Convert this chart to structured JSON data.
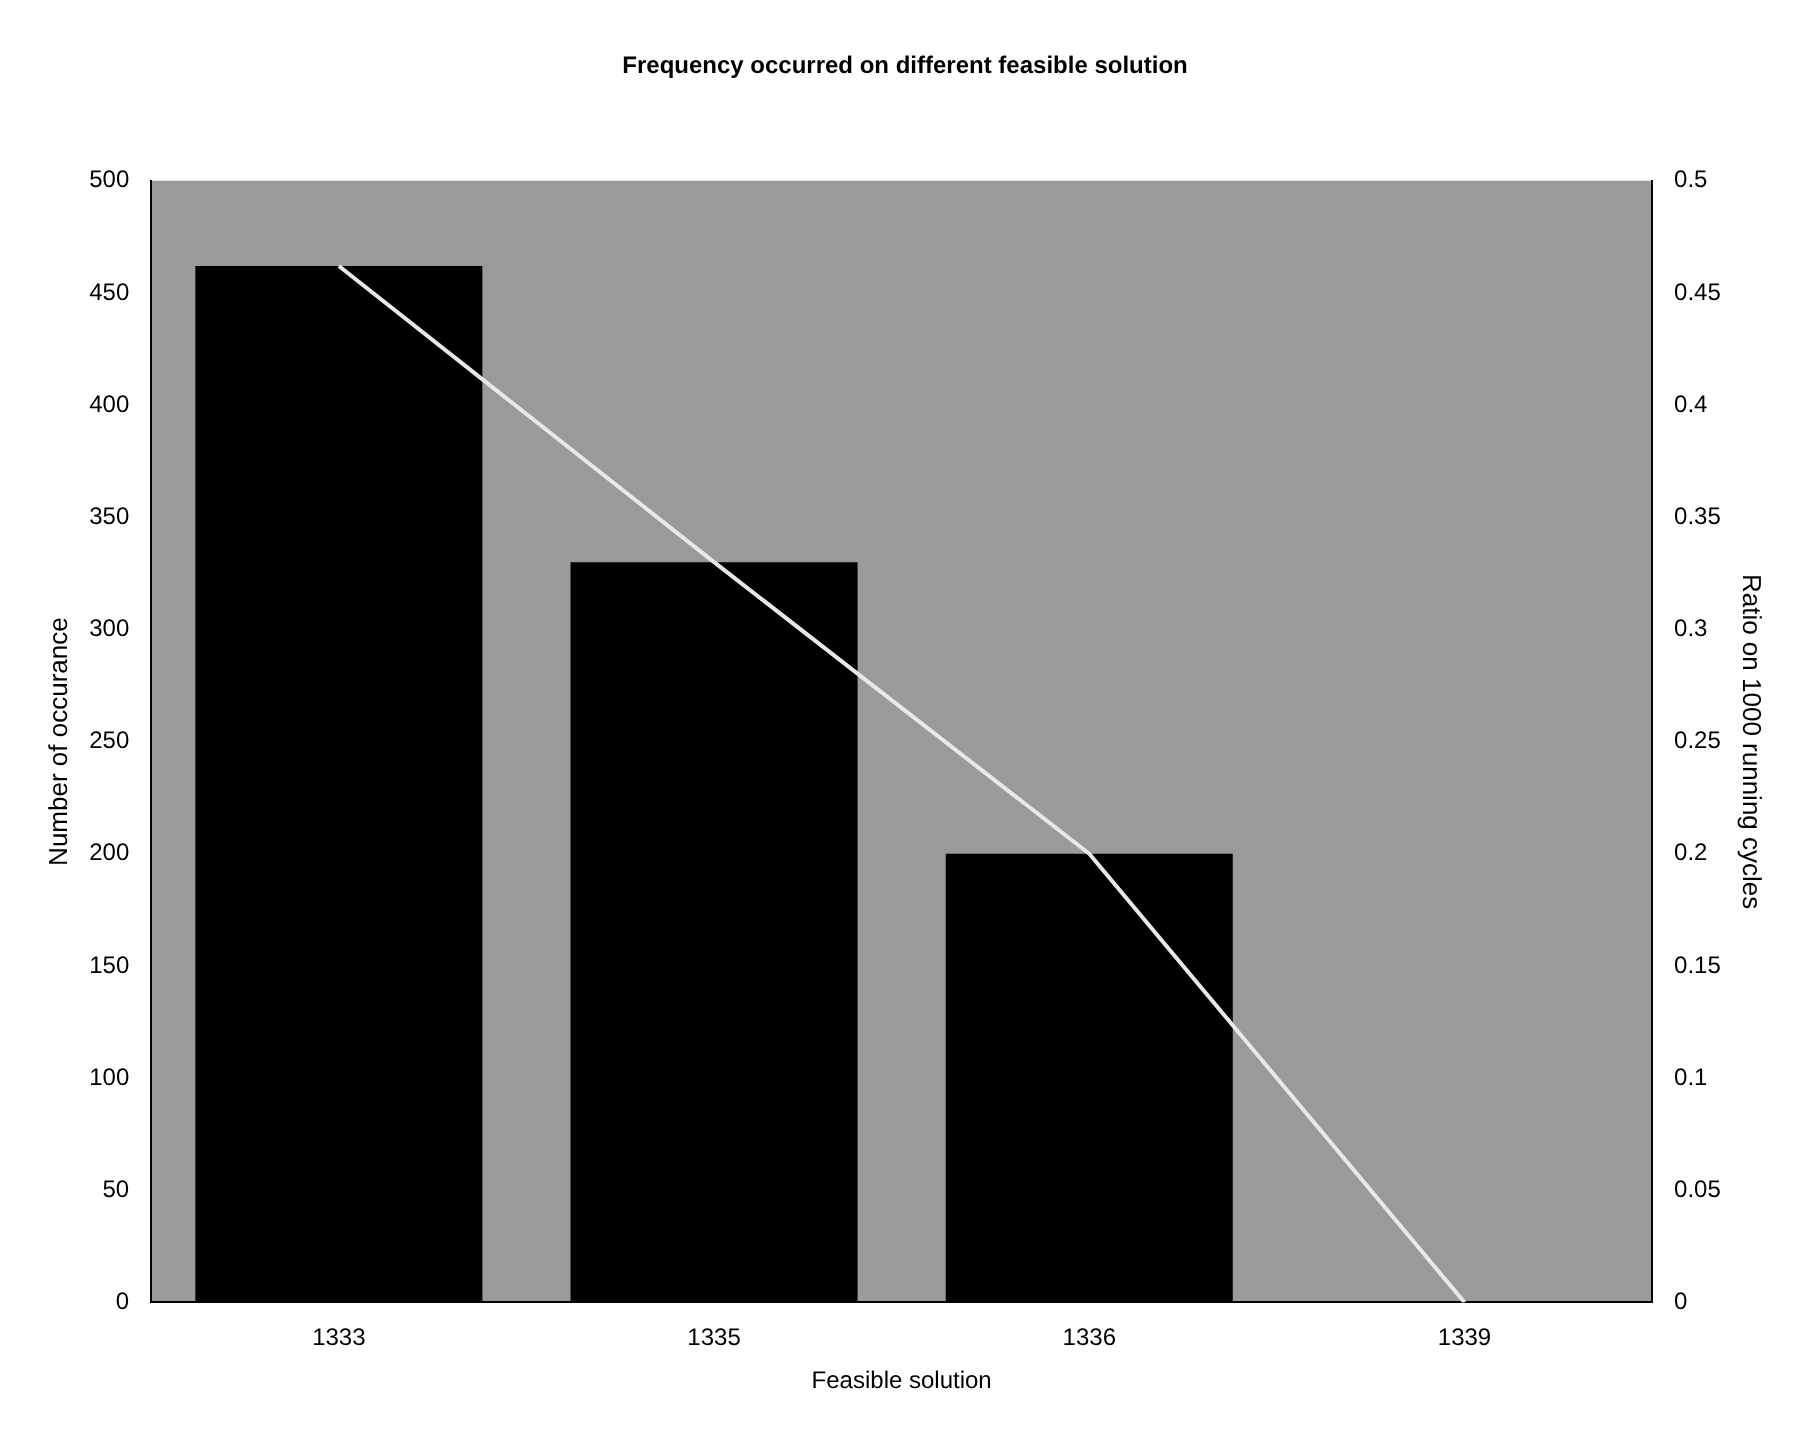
{
  "chart_data": {
    "type": "bar",
    "title": "Frequency occurred on different feasible solution",
    "xlabel": "Feasible solution",
    "ylabel": "Number of occurance",
    "y2label": "Ratio on 1000 running cycles",
    "categories": [
      "1333",
      "1335",
      "1336",
      "1339"
    ],
    "series": [
      {
        "color": "#000000",
        "values": [
          462,
          330,
          200,
          0
        ]
      },
      {
        "type": "line",
        "color": "#e8e8e8",
        "axis": "y2",
        "values": [
          0.462,
          0.33,
          0.2,
          0
        ]
      }
    ],
    "ylim": [
      0,
      500
    ],
    "yticks": [
      0,
      50,
      100,
      150,
      200,
      250,
      300,
      350,
      400,
      450,
      500
    ],
    "y2lim": [
      0,
      0.5
    ],
    "y2ticks": [
      0,
      0.05,
      0.1,
      0.15,
      0.2,
      0.25,
      0.3,
      0.35,
      0.4,
      0.45,
      0.5
    ],
    "grid": false,
    "legend": false,
    "marker": "none"
  }
}
